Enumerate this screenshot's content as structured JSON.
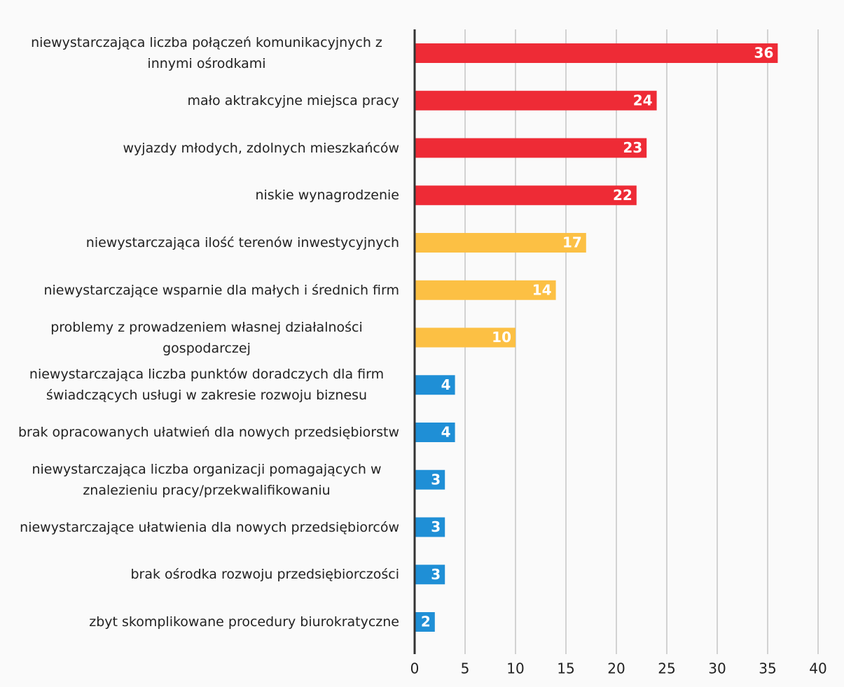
{
  "chart_data": {
    "type": "hbar",
    "categories": [
      "niewystarczająca liczba połączeń komunikacyjnych z innymi ośrodkami",
      "mało aktrakcyjne miejsca pracy",
      "wyjazdy młodych, zdolnych mieszkańców",
      "niskie wynagrodzenie",
      "niewystarczająca ilość terenów inwestycyjnych",
      "niewystarczające wsparnie dla małych i średnich firm",
      "problemy z prowadzeniem własnej działalności gospodarczej",
      "niewystarczająca liczba punktów doradczych dla firm świadczących usługi w zakresie rozwoju biznesu",
      "brak opracowanych ułatwień dla nowych przedsiębiorstw",
      "niewystarczająca liczba organizacji pomagających w znalezieniu pracy/przekwalifikowaniu",
      "niewystarczające ułatwienia dla nowych przedsiębiorców",
      "brak ośrodka rozwoju przedsiębiorczości",
      "zbyt skomplikowane procedury biurokratyczne"
    ],
    "values": [
      36,
      24,
      23,
      22,
      17,
      14,
      10,
      4,
      4,
      3,
      3,
      3,
      2
    ],
    "colors": [
      "#ee2b36",
      "#ee2b36",
      "#ee2b36",
      "#ee2b36",
      "#fcc044",
      "#fcc044",
      "#fcc044",
      "#1f8fd6",
      "#1f8fd6",
      "#1f8fd6",
      "#1f8fd6",
      "#1f8fd6",
      "#1f8fd6"
    ],
    "xlim": [
      0,
      40
    ],
    "xticks": [
      0,
      5,
      10,
      15,
      20,
      25,
      30,
      35,
      40
    ],
    "grid": true
  }
}
